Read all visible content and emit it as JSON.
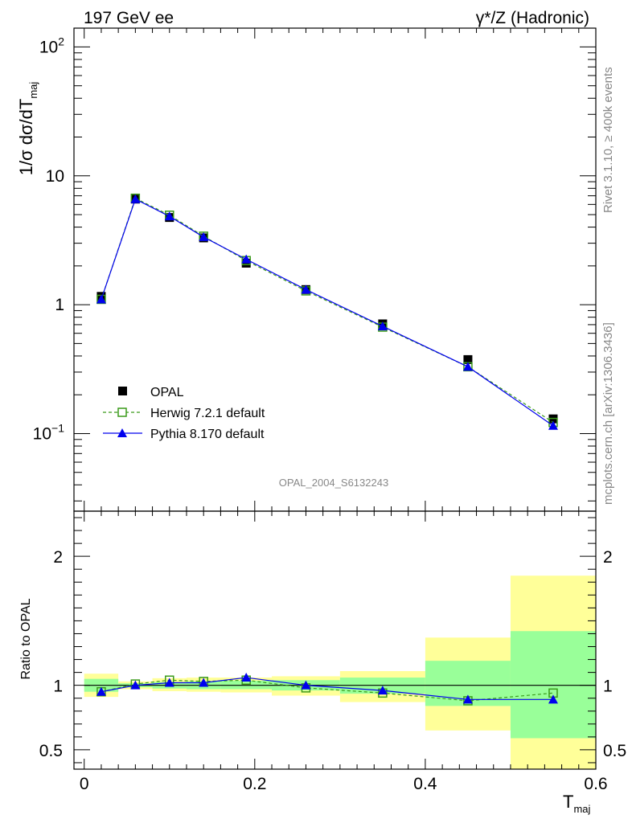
{
  "header": {
    "left_title": "197 GeV ee",
    "right_title": "γ*/Z (Hadronic)"
  },
  "side_text": {
    "top": "Rivet 3.1.10, ≥ 400k events",
    "bottom": "mcplots.cern.ch [arXiv:1306.3436]"
  },
  "watermark": "OPAL_2004_S6132243",
  "colors": {
    "data": "#000000",
    "herwig": "#3a9a1a",
    "pythia": "#0000ee",
    "band_outer": "#ffff99",
    "band_inner": "#99ff99"
  },
  "chart_data": [
    {
      "type": "line",
      "yscale": "log",
      "ylabel": "1/σ dσ/dT",
      "ylabel_sub": "maj",
      "ylim": [
        0.025,
        140
      ],
      "xlim": [
        -0.012,
        0.6
      ],
      "yticks": [
        {
          "value": 0.1,
          "label": "10",
          "sup": "−1"
        },
        {
          "value": 1,
          "label": "1",
          "sup": ""
        },
        {
          "value": 10,
          "label": "10",
          "sup": ""
        },
        {
          "value": 100,
          "label": "10",
          "sup": "2"
        }
      ],
      "x": [
        0.02,
        0.06,
        0.1,
        0.14,
        0.19,
        0.26,
        0.35,
        0.45,
        0.55
      ],
      "series": [
        {
          "name": "OPAL",
          "marker": "square-filled",
          "values": [
            1.16,
            6.6,
            4.75,
            3.3,
            2.1,
            1.31,
            0.71,
            0.375,
            0.13
          ]
        },
        {
          "name": "Herwig 7.2.1 default",
          "marker": "square-open",
          "line": "dashed",
          "values": [
            1.1,
            6.7,
            4.95,
            3.4,
            2.2,
            1.28,
            0.67,
            0.33,
            0.122
          ]
        },
        {
          "name": "Pythia 8.170 default",
          "marker": "triangle-filled",
          "line": "solid",
          "values": [
            1.1,
            6.6,
            4.85,
            3.35,
            2.25,
            1.31,
            0.68,
            0.33,
            0.115
          ]
        }
      ],
      "legend_position": "bottom-left"
    },
    {
      "type": "line",
      "xlabel": "T",
      "xlabel_sub": "maj",
      "ylabel": "Ratio to OPAL",
      "ylim": [
        0.35,
        2.35
      ],
      "xlim": [
        -0.012,
        0.6
      ],
      "xticks": [
        0,
        0.2,
        0.4,
        0.6
      ],
      "xtick_labels": [
        "0",
        "0.2",
        "0.4",
        "0.6"
      ],
      "yticks": [
        0.5,
        1,
        2
      ],
      "ytick_labels": [
        "0.5",
        "1",
        "2"
      ],
      "bins": [
        {
          "x0": 0.0,
          "x1": 0.04,
          "outer": [
            0.91,
            1.09
          ],
          "inner": [
            0.95,
            1.05
          ]
        },
        {
          "x0": 0.04,
          "x1": 0.08,
          "outer": [
            0.97,
            1.03
          ],
          "inner": [
            0.985,
            1.015
          ]
        },
        {
          "x0": 0.08,
          "x1": 0.12,
          "outer": [
            0.955,
            1.055
          ],
          "inner": [
            0.975,
            1.025
          ]
        },
        {
          "x0": 0.12,
          "x1": 0.16,
          "outer": [
            0.95,
            1.06
          ],
          "inner": [
            0.97,
            1.03
          ]
        },
        {
          "x0": 0.16,
          "x1": 0.22,
          "outer": [
            0.945,
            1.06
          ],
          "inner": [
            0.97,
            1.035
          ]
        },
        {
          "x0": 0.22,
          "x1": 0.3,
          "outer": [
            0.92,
            1.07
          ],
          "inner": [
            0.96,
            1.04
          ]
        },
        {
          "x0": 0.3,
          "x1": 0.4,
          "outer": [
            0.87,
            1.11
          ],
          "inner": [
            0.935,
            1.06
          ]
        },
        {
          "x0": 0.4,
          "x1": 0.5,
          "outer": [
            0.65,
            1.37
          ],
          "inner": [
            0.84,
            1.19
          ]
        },
        {
          "x0": 0.5,
          "x1": 0.6,
          "outer": [
            0.35,
            1.85
          ],
          "inner": [
            0.59,
            1.42
          ]
        }
      ],
      "x": [
        0.02,
        0.06,
        0.1,
        0.14,
        0.19,
        0.26,
        0.35,
        0.45,
        0.55
      ],
      "series": [
        {
          "name": "Herwig 7.2.1 default",
          "marker": "square-open",
          "line": "dashed",
          "values": [
            0.95,
            1.01,
            1.04,
            1.03,
            1.04,
            0.98,
            0.94,
            0.88,
            0.94
          ]
        },
        {
          "name": "Pythia 8.170 default",
          "marker": "triangle-filled",
          "line": "solid",
          "values": [
            0.95,
            1.0,
            1.02,
            1.02,
            1.06,
            1.0,
            0.96,
            0.89,
            0.89
          ]
        }
      ]
    }
  ]
}
